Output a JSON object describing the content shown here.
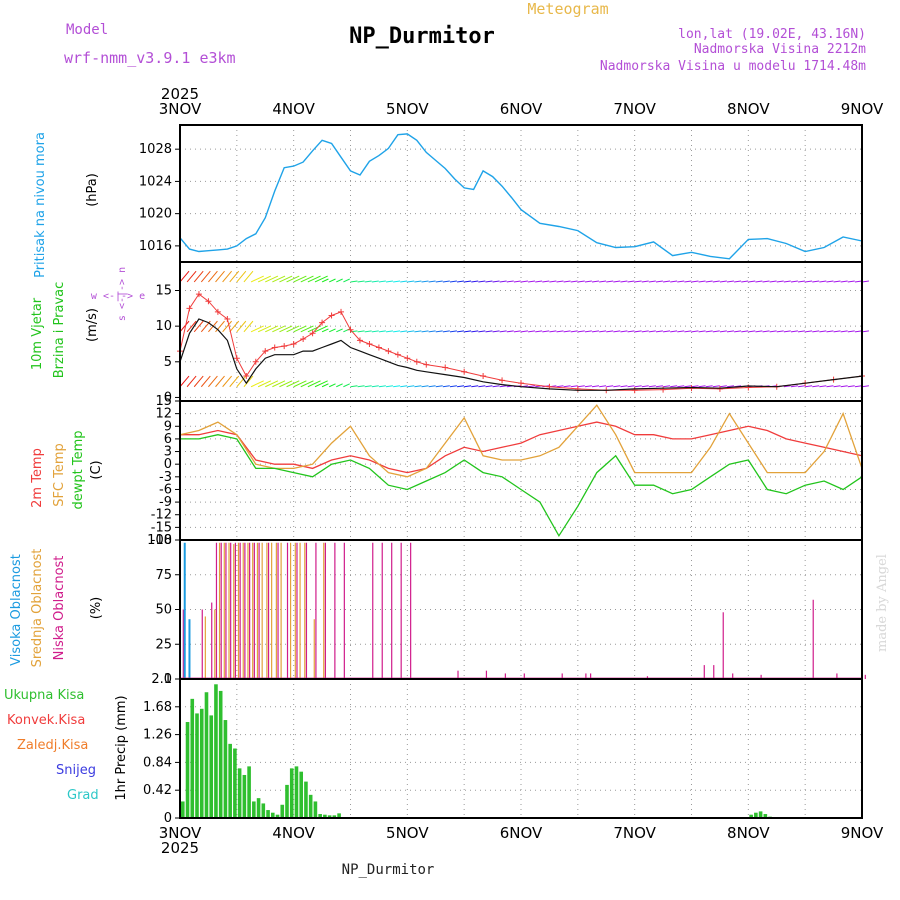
{
  "header": {
    "model_label": "Model",
    "model_name": "wrf-nmm_v3.9.1 e3km",
    "title": "NP_Durmitor",
    "subtitle": "Meteogram",
    "coords": "lon,lat (19.02E, 43.16N)",
    "elevation": "Nadmorska Visina 2212m",
    "model_elevation": "Nadmorska Visina u modelu 1714.48m",
    "footer_title": "NP_Durmitor",
    "watermark": "made by Angel"
  },
  "colors": {
    "pressure": "#1fa3e8",
    "temp2m": "#f03c3c",
    "sfc": "#e2a23a",
    "dew": "#22c41c",
    "high": "#1c9be0",
    "mid": "#e2a23a",
    "low": "#d01c8b",
    "precip": "#2fbf2f",
    "label_purple": "#b34fd6",
    "label_gold": "#e8b84a"
  },
  "chart_data": [
    {
      "id": "pressure",
      "type": "line",
      "title": "Pritisak na nivou mora",
      "ylabel": "(hPa)",
      "yticks": [
        "1016",
        "1020",
        "1024",
        "1028"
      ],
      "ylim": [
        1014,
        1031
      ],
      "x": [
        0,
        2,
        4,
        6,
        8,
        10,
        12,
        14,
        16,
        18,
        20,
        22,
        24,
        26,
        28,
        30,
        32,
        34,
        36,
        38,
        40,
        42,
        44,
        46,
        48,
        50,
        52,
        54,
        56,
        58,
        60,
        62,
        64,
        66,
        68,
        70,
        72,
        76,
        80,
        84,
        88,
        92,
        96,
        100,
        104,
        108,
        112,
        116,
        120,
        124,
        128,
        132,
        136,
        140,
        144
      ],
      "values": [
        1017.0,
        1015.6,
        1015.3,
        1015.4,
        1015.5,
        1015.6,
        1016.0,
        1016.9,
        1017.5,
        1019.5,
        1022.8,
        1025.7,
        1025.9,
        1026.4,
        1027.8,
        1029.1,
        1028.7,
        1027.0,
        1025.3,
        1024.8,
        1026.5,
        1027.2,
        1028.1,
        1029.8,
        1029.9,
        1029.1,
        1027.6,
        1026.6,
        1025.6,
        1024.3,
        1023.2,
        1023.0,
        1025.3,
        1024.6,
        1023.4,
        1022.0,
        1020.5,
        1018.8,
        1018.4,
        1017.9,
        1016.4,
        1015.8,
        1015.9,
        1016.5,
        1014.8,
        1015.2,
        1014.7,
        1014.4,
        1016.8,
        1016.9,
        1016.3,
        1015.3,
        1015.8,
        1017.1,
        1016.6
      ]
    },
    {
      "id": "wind",
      "type": "line",
      "title": "10m Vjetar Brzina i Pravac",
      "ylabel": "(m/s)",
      "yticks": [
        "0",
        "5",
        "10",
        "15"
      ],
      "ylim": [
        -0.5,
        19
      ],
      "compass": "w <-|-> e",
      "x": [
        0,
        2,
        4,
        6,
        8,
        10,
        12,
        14,
        16,
        18,
        20,
        22,
        24,
        26,
        28,
        30,
        32,
        34,
        36,
        38,
        40,
        42,
        44,
        46,
        48,
        50,
        52,
        56,
        60,
        64,
        68,
        72,
        78,
        84,
        90,
        96,
        102,
        108,
        114,
        120,
        126,
        132,
        138,
        144
      ],
      "speed": [
        5.0,
        9.0,
        11.0,
        10.5,
        9.5,
        8.0,
        4.0,
        2.0,
        4.0,
        5.5,
        6.0,
        6.0,
        6.0,
        6.5,
        6.5,
        7.0,
        7.5,
        8.0,
        7.0,
        6.5,
        6.0,
        5.5,
        5.0,
        4.5,
        4.2,
        3.8,
        3.6,
        3.2,
        2.8,
        2.2,
        1.8,
        1.5,
        1.2,
        1.0,
        1.0,
        1.2,
        1.3,
        1.4,
        1.3,
        1.6,
        1.5,
        2.0,
        2.5,
        3.0
      ],
      "gust": [
        6.5,
        12.5,
        14.5,
        13.5,
        12.0,
        11.0,
        5.5,
        3.0,
        5.0,
        6.5,
        7.0,
        7.2,
        7.5,
        8.2,
        9.0,
        10.5,
        11.5,
        12.0,
        9.5,
        8.0,
        7.5,
        7.0,
        6.5,
        6.0,
        5.5,
        5.0,
        4.6,
        4.2,
        3.6,
        3.0,
        2.4,
        2.0,
        1.5,
        1.2,
        1.0,
        1.0,
        1.1,
        1.3,
        1.2,
        1.4,
        1.5,
        2.0,
        2.5,
        3.0
      ]
    },
    {
      "id": "temperature",
      "type": "line",
      "title": "2m Temp / SFC Temp / dewpt Temp",
      "ylabel": "(C)",
      "yticks": [
        "-18",
        "-15",
        "-12",
        "-9",
        "-6",
        "-3",
        "0",
        "3",
        "6",
        "9",
        "12",
        "15"
      ],
      "ylim": [
        -18,
        15
      ],
      "series": [
        {
          "name": "2m Temp",
          "x": [
            0,
            4,
            8,
            12,
            16,
            20,
            24,
            28,
            32,
            36,
            40,
            44,
            48,
            52,
            56,
            60,
            64,
            68,
            72,
            76,
            80,
            84,
            88,
            92,
            96,
            100,
            104,
            108,
            112,
            116,
            120,
            124,
            128,
            132,
            136,
            140,
            144
          ],
          "values": [
            7,
            7,
            8,
            7,
            1,
            0,
            0,
            -1,
            1,
            2,
            1,
            -1,
            -2,
            -1,
            2,
            4,
            3,
            4,
            5,
            7,
            8,
            9,
            10,
            9,
            7,
            7,
            6,
            6,
            7,
            8,
            9,
            8,
            6,
            5,
            4,
            3,
            2
          ]
        },
        {
          "name": "SFC Temp",
          "x": [
            0,
            4,
            8,
            12,
            16,
            20,
            24,
            28,
            32,
            36,
            40,
            44,
            48,
            52,
            56,
            60,
            64,
            68,
            72,
            76,
            80,
            84,
            88,
            92,
            96,
            100,
            104,
            108,
            112,
            116,
            120,
            124,
            128,
            132,
            136,
            140,
            144
          ],
          "values": [
            7,
            8,
            10,
            7,
            0,
            -1,
            -1,
            0,
            5,
            9,
            2,
            -2,
            -3,
            -1,
            5,
            11,
            2,
            1,
            1,
            2,
            4,
            9,
            14,
            7,
            -2,
            -2,
            -2,
            -2,
            4,
            12,
            5,
            -2,
            -2,
            -2,
            3,
            12,
            -1
          ]
        },
        {
          "name": "dewpt Temp",
          "x": [
            0,
            4,
            8,
            12,
            16,
            20,
            24,
            28,
            32,
            36,
            40,
            44,
            48,
            52,
            56,
            60,
            64,
            68,
            72,
            76,
            80,
            84,
            88,
            92,
            96,
            100,
            104,
            108,
            112,
            116,
            120,
            124,
            128,
            132,
            136,
            140,
            144
          ],
          "values": [
            6,
            6,
            7,
            6,
            -1,
            -1,
            -2,
            -3,
            0,
            1,
            -1,
            -5,
            -6,
            -4,
            -2,
            1,
            -2,
            -3,
            -6,
            -9,
            -17,
            -10,
            -2,
            2,
            -5,
            -5,
            -7,
            -6,
            -3,
            0,
            1,
            -6,
            -7,
            -5,
            -4,
            -6,
            -3
          ]
        }
      ]
    },
    {
      "id": "clouds",
      "type": "bar",
      "title": "Visoka / Srednja / Niska Oblacnost",
      "ylabel": "(%)",
      "yticks": [
        "0",
        "25",
        "50",
        "75",
        "100"
      ],
      "ylim": [
        0,
        100
      ],
      "series": [
        {
          "name": "Visoka Oblacnost",
          "x": [
            1,
            2,
            144
          ],
          "values": [
            98,
            43,
            55
          ]
        },
        {
          "name": "Srednja Oblacnost",
          "x": [
            5,
            7,
            8,
            9,
            10,
            11,
            12,
            13,
            14,
            15,
            16,
            17,
            18,
            19,
            20,
            21,
            23,
            24,
            25,
            26,
            28,
            30
          ],
          "values": [
            45,
            50,
            98,
            98,
            98,
            97,
            98,
            98,
            98,
            98,
            98,
            98,
            98,
            98,
            98,
            98,
            98,
            98,
            98,
            98,
            43,
            98
          ]
        },
        {
          "name": "Niska Oblacnost",
          "x": [
            0,
            4,
            6,
            7,
            8,
            9,
            10,
            11,
            12,
            13,
            14,
            15,
            16,
            18,
            20,
            22,
            24,
            26,
            28,
            30,
            32,
            34,
            40,
            42,
            44,
            46,
            48,
            58,
            64,
            68,
            72,
            80,
            85,
            86,
            98,
            110,
            112,
            114,
            116,
            122,
            133,
            138,
            144
          ],
          "values": [
            50,
            50,
            55,
            98,
            98,
            98,
            98,
            98,
            98,
            98,
            98,
            98,
            98,
            98,
            98,
            98,
            98,
            98,
            98,
            98,
            98,
            98,
            98,
            98,
            98,
            98,
            98,
            6,
            6,
            4,
            4,
            4,
            4,
            4,
            2,
            10,
            10,
            48,
            4,
            3,
            57,
            4,
            3
          ]
        }
      ]
    },
    {
      "id": "precip",
      "type": "bar",
      "title": "1hr Precip",
      "ylabel": "1hr Precip (mm)",
      "yticks": [
        "0",
        "0.42",
        "0.84",
        "1.26",
        "1.68",
        "2.1"
      ],
      "ylim": [
        0,
        2.1
      ],
      "legend": [
        "Ukupna Kisa",
        "Konvek.Kisa",
        "Zaledj.Kisa",
        "Snijeg",
        "Grad"
      ],
      "x": [
        0,
        1,
        2,
        3,
        4,
        5,
        6,
        7,
        8,
        9,
        10,
        11,
        12,
        13,
        14,
        15,
        16,
        17,
        18,
        19,
        20,
        21,
        22,
        23,
        24,
        25,
        26,
        27,
        28,
        29,
        30,
        31,
        32,
        33,
        34,
        35,
        36,
        37,
        38,
        120,
        121,
        122,
        123,
        124
      ],
      "values": [
        0.25,
        1.45,
        1.8,
        1.58,
        1.65,
        1.9,
        1.55,
        2.02,
        1.92,
        1.48,
        1.12,
        1.05,
        0.75,
        0.65,
        0.78,
        0.25,
        0.3,
        0.22,
        0.12,
        0.08,
        0.05,
        0.2,
        0.5,
        0.75,
        0.78,
        0.7,
        0.55,
        0.35,
        0.25,
        0.06,
        0.05,
        0.04,
        0.04,
        0.07,
        0.01,
        0.01,
        0.01,
        0.01,
        0.01,
        0.05,
        0.08,
        0.1,
        0.06,
        0.02
      ]
    }
  ],
  "time_axis": {
    "year": "2025",
    "ticks": [
      "3NOV",
      "4NOV",
      "5NOV",
      "6NOV",
      "7NOV",
      "8NOV",
      "9NOV"
    ],
    "hours_total": 144
  },
  "labels": {
    "pressure_title": "Pritisak na nivou mora",
    "pressure_unit": "(hPa)",
    "wind_title_1": "10m Vjetar",
    "wind_title_2": "Brzina i Pravac",
    "wind_unit": "(m/s)",
    "wind_compass": "w <-|-> e",
    "wind_ns": "s <-|-> n",
    "temp_1": "2m Temp",
    "temp_2": "SFC Temp",
    "temp_3": "dewpt Temp",
    "temp_unit": "(C)",
    "cloud_1": "Visoka Oblacnost",
    "cloud_2": "Srednja Oblacnost",
    "cloud_3": "Niska Oblacnost",
    "cloud_unit": "(%)",
    "precip_1": "Ukupna Kisa",
    "precip_2": "Konvek.Kisa",
    "precip_3": "Zaledj.Kisa",
    "precip_4": "Snijeg",
    "precip_5": "Grad",
    "precip_unit": "1hr Precip (mm)"
  }
}
